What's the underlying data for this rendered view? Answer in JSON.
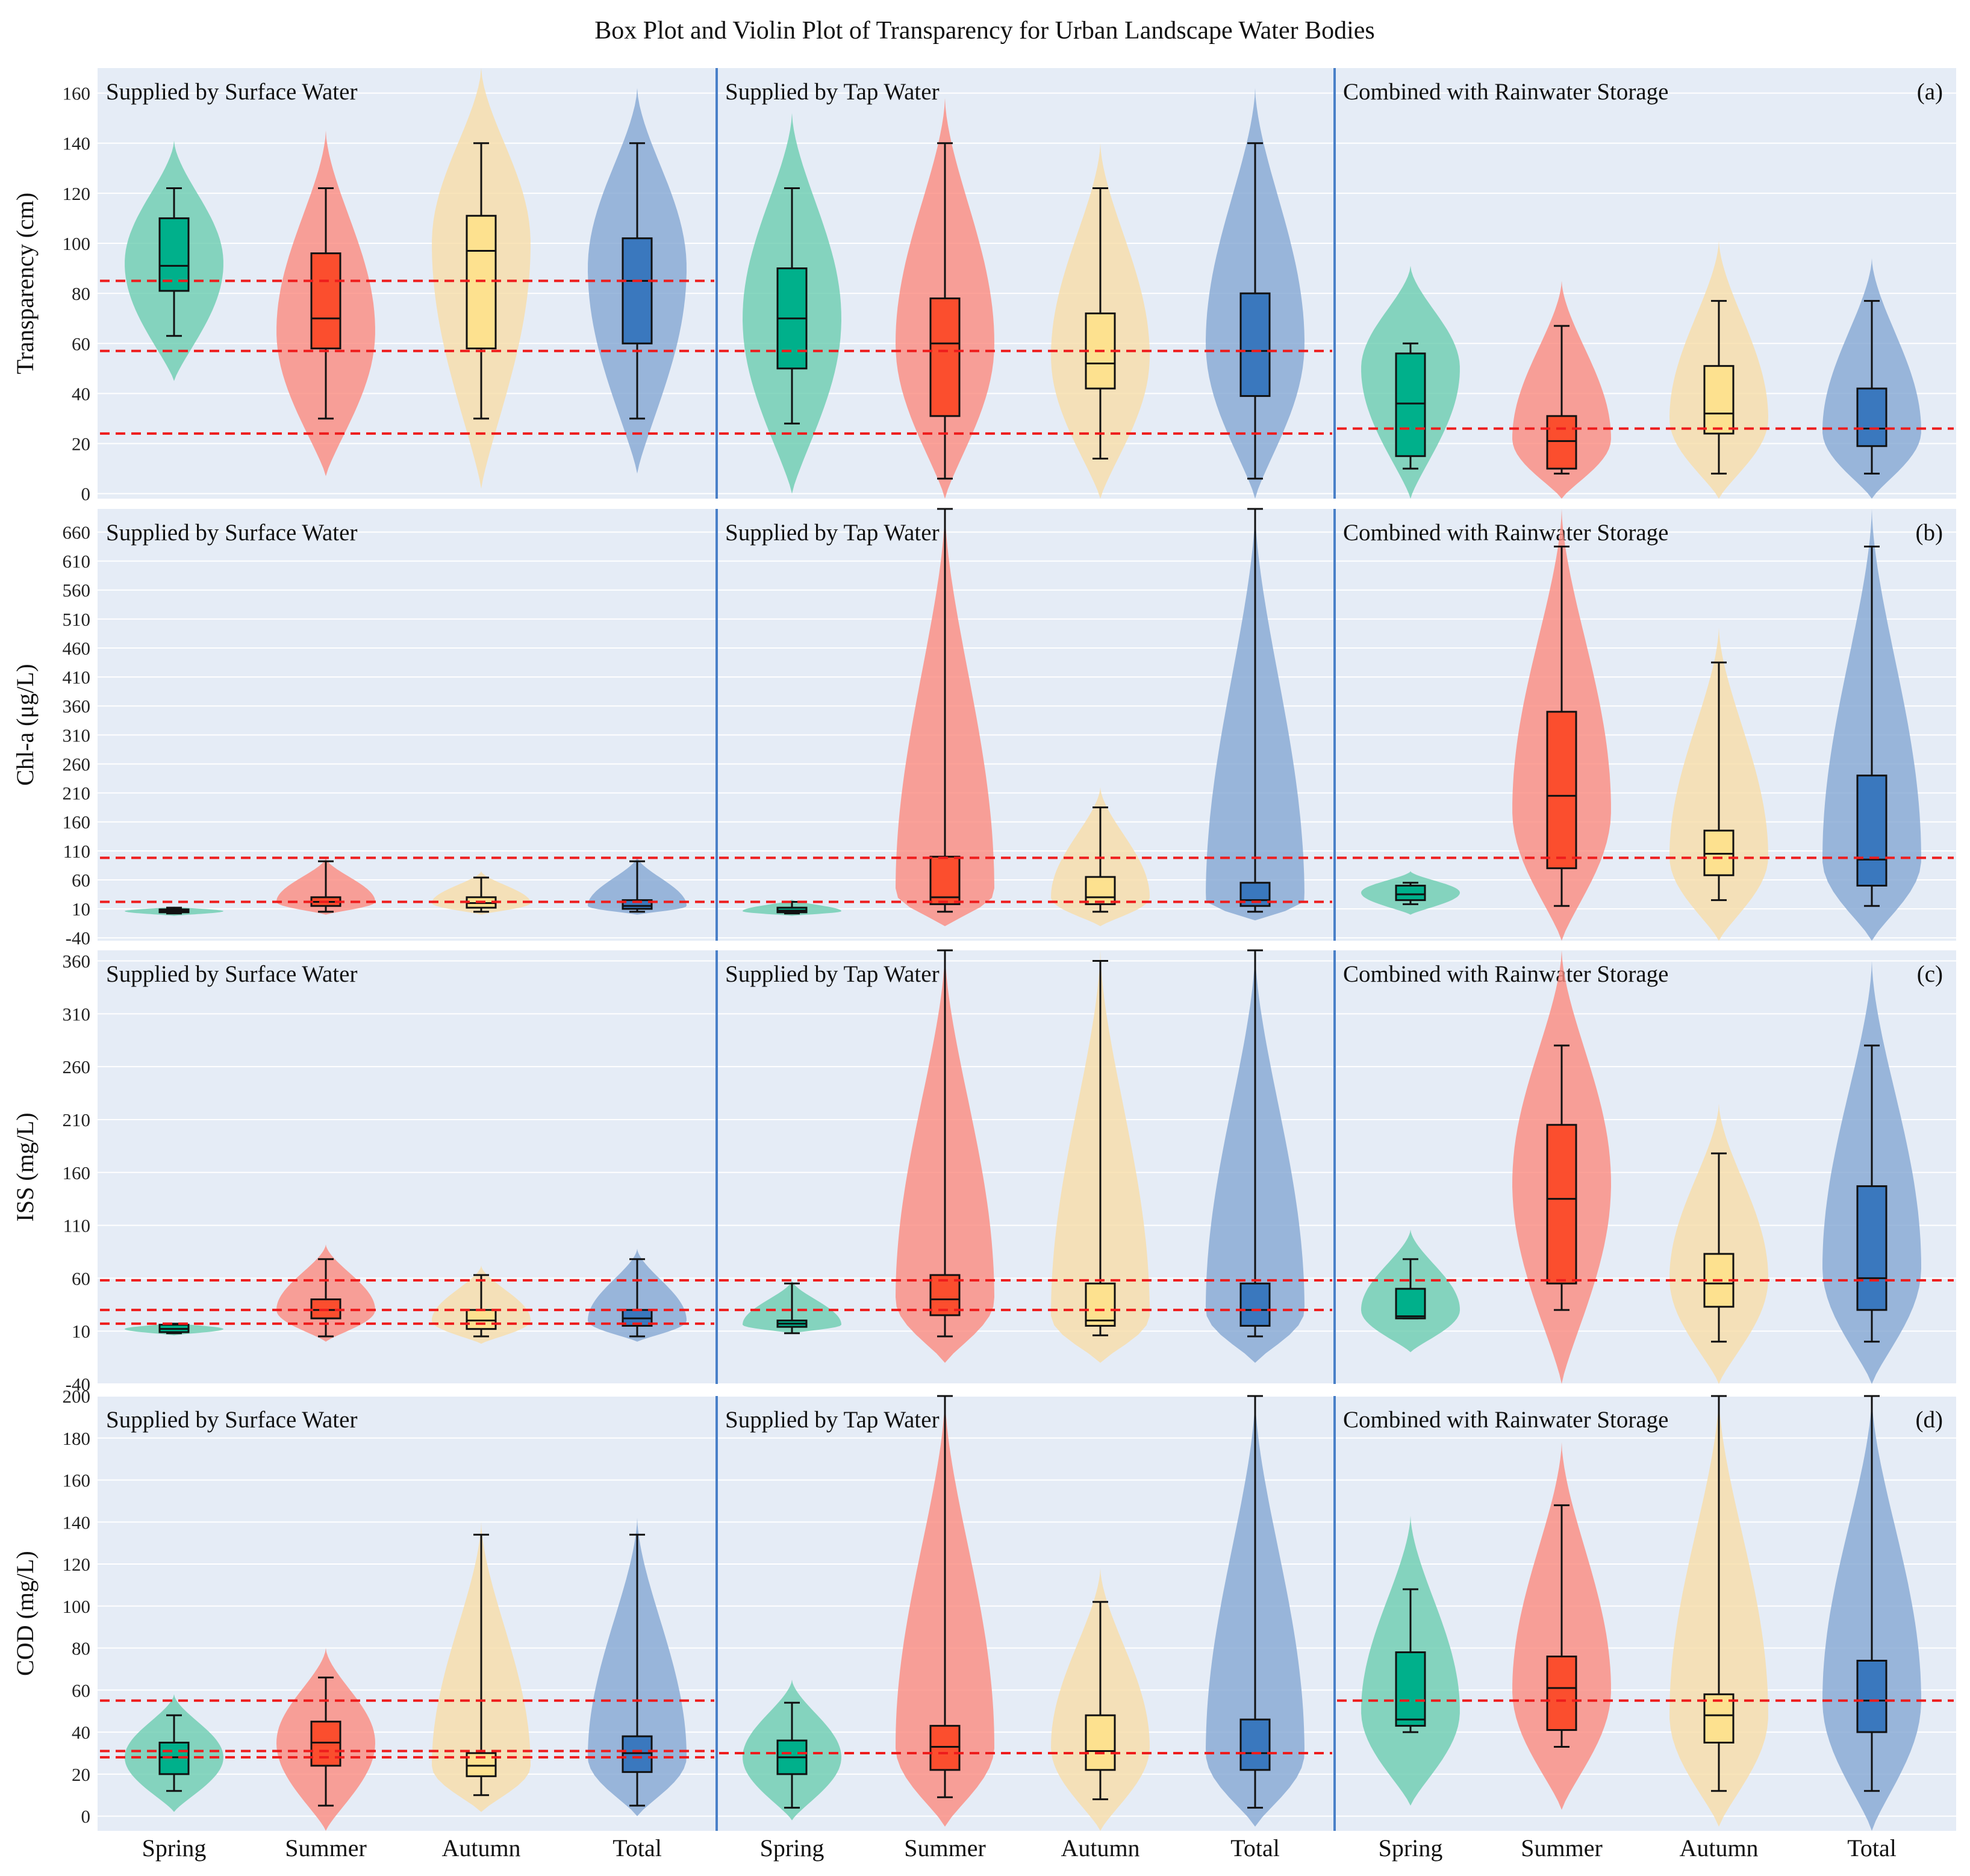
{
  "chart_data": {
    "type": "violin",
    "title": "Box Plot and Violin Plot of Transparency for Urban Landscape Water Bodies",
    "groups": [
      "Supplied by Surface Water",
      "Supplied by Tap Water",
      "Combined with Rainwater Storage"
    ],
    "categories": [
      "Spring",
      "Summer",
      "Autumn",
      "Total"
    ],
    "colors": {
      "Spring": {
        "box": "#00b08b",
        "violin": "#6ccdb0"
      },
      "Summer": {
        "box": "#fb4e2e",
        "violin": "#fb8b80"
      },
      "Autumn": {
        "box": "#fde18f",
        "violin": "#f8dda9"
      },
      "Total": {
        "box": "#3a78be",
        "violin": "#85a8d3"
      }
    },
    "panels": [
      {
        "label": "(a)",
        "ylabel": "Transparency (cm)",
        "ylim": [
          -2,
          170
        ],
        "yticks": [
          0,
          20,
          40,
          60,
          80,
          100,
          120,
          140,
          160
        ],
        "thresholds": [
          [
            85,
            57,
            24
          ],
          [
            57,
            24
          ],
          [
            26
          ]
        ],
        "boxes": [
          [
            {
              "min": 63,
              "q1": 81,
              "med": 91,
              "q3": 110,
              "max": 122,
              "vmin": 45,
              "vmax": 141,
              "peak": 92
            },
            {
              "min": 30,
              "q1": 58,
              "med": 70,
              "q3": 96,
              "max": 122,
              "vmin": 7,
              "vmax": 145,
              "peak": 65
            },
            {
              "min": 30,
              "q1": 58,
              "med": 97,
              "q3": 111,
              "max": 140,
              "vmin": 2,
              "vmax": 170,
              "peak": 100
            },
            {
              "min": 30,
              "q1": 60,
              "med": 85,
              "q3": 102,
              "max": 140,
              "vmin": 8,
              "vmax": 162,
              "peak": 90
            }
          ],
          [
            {
              "min": 28,
              "q1": 50,
              "med": 70,
              "q3": 90,
              "max": 122,
              "vmin": 0,
              "vmax": 152,
              "peak": 70
            },
            {
              "min": 6,
              "q1": 31,
              "med": 60,
              "q3": 78,
              "max": 140,
              "vmin": -2,
              "vmax": 158,
              "peak": 60
            },
            {
              "min": 14,
              "q1": 42,
              "med": 52,
              "q3": 72,
              "max": 122,
              "vmin": -2,
              "vmax": 140,
              "peak": 55
            },
            {
              "min": 6,
              "q1": 39,
              "med": 57,
              "q3": 80,
              "max": 140,
              "vmin": -2,
              "vmax": 162,
              "peak": 60
            }
          ],
          [
            {
              "min": 10,
              "q1": 15,
              "med": 36,
              "q3": 56,
              "max": 60,
              "vmin": -2,
              "vmax": 91,
              "peak": 50
            },
            {
              "min": 8,
              "q1": 10,
              "med": 21,
              "q3": 31,
              "max": 67,
              "vmin": -2,
              "vmax": 85,
              "peak": 22
            },
            {
              "min": 8,
              "q1": 24,
              "med": 32,
              "q3": 51,
              "max": 77,
              "vmin": -2,
              "vmax": 101,
              "peak": 30
            },
            {
              "min": 8,
              "q1": 19,
              "med": 26,
              "q3": 42,
              "max": 77,
              "vmin": -2,
              "vmax": 94,
              "peak": 25
            }
          ]
        ]
      },
      {
        "label": "(b)",
        "ylabel": "Chl-a (μg/L)",
        "ylim": [
          -45,
          700
        ],
        "yticks": [
          -40,
          10,
          60,
          110,
          160,
          210,
          260,
          310,
          360,
          410,
          460,
          510,
          560,
          610,
          660
        ],
        "thresholds": [
          [
            98,
            22
          ],
          [
            98,
            22
          ],
          [
            98
          ]
        ],
        "boxes": [
          [
            {
              "min": 2,
              "q1": 4,
              "med": 6,
              "q3": 9,
              "max": 12,
              "vmin": -2,
              "vmax": 14,
              "peak": 6
            },
            {
              "min": 5,
              "q1": 15,
              "med": 22,
              "q3": 30,
              "max": 92,
              "vmin": 0,
              "vmax": 98,
              "peak": 22
            },
            {
              "min": 5,
              "q1": 12,
              "med": 20,
              "q3": 30,
              "max": 64,
              "vmin": 0,
              "vmax": 75,
              "peak": 20
            },
            {
              "min": 5,
              "q1": 10,
              "med": 15,
              "q3": 25,
              "max": 92,
              "vmin": 0,
              "vmax": 100,
              "peak": 15
            }
          ],
          [
            {
              "min": 2,
              "q1": 4,
              "med": 7,
              "q3": 12,
              "max": 22,
              "vmin": -2,
              "vmax": 26,
              "peak": 6
            },
            {
              "min": 5,
              "q1": 18,
              "med": 30,
              "q3": 100,
              "max": 700,
              "vmin": -20,
              "vmax": 700,
              "peak": 40
            },
            {
              "min": 5,
              "q1": 18,
              "med": 30,
              "q3": 65,
              "max": 185,
              "vmin": -20,
              "vmax": 220,
              "peak": 30
            },
            {
              "min": 5,
              "q1": 15,
              "med": 25,
              "q3": 55,
              "max": 700,
              "vmin": -10,
              "vmax": 700,
              "peak": 25
            }
          ],
          [
            {
              "min": 18,
              "q1": 25,
              "med": 35,
              "q3": 50,
              "max": 55,
              "vmin": 0,
              "vmax": 75,
              "peak": 38
            },
            {
              "min": 15,
              "q1": 80,
              "med": 205,
              "q3": 350,
              "max": 635,
              "vmin": -45,
              "vmax": 700,
              "peak": 180
            },
            {
              "min": 25,
              "q1": 68,
              "med": 105,
              "q3": 145,
              "max": 435,
              "vmin": -45,
              "vmax": 495,
              "peak": 100
            },
            {
              "min": 15,
              "q1": 50,
              "med": 95,
              "q3": 240,
              "max": 635,
              "vmin": -45,
              "vmax": 700,
              "peak": 95
            }
          ]
        ]
      },
      {
        "label": "(c)",
        "ylabel": "ISS (mg/L)",
        "ylim": [
          -40,
          370
        ],
        "yticks": [
          -40,
          10,
          60,
          110,
          160,
          210,
          260,
          310,
          360
        ],
        "thresholds": [
          [
            58,
            30,
            17
          ],
          [
            58,
            30
          ],
          [
            58
          ]
        ],
        "boxes": [
          [
            {
              "min": 8,
              "q1": 9,
              "med": 12,
              "q3": 16,
              "max": 17,
              "vmin": 6,
              "vmax": 18,
              "peak": 12
            },
            {
              "min": 5,
              "q1": 22,
              "med": 30,
              "q3": 40,
              "max": 78,
              "vmin": 0,
              "vmax": 92,
              "peak": 30
            },
            {
              "min": 5,
              "q1": 12,
              "med": 20,
              "q3": 30,
              "max": 63,
              "vmin": -2,
              "vmax": 72,
              "peak": 20
            },
            {
              "min": 5,
              "q1": 15,
              "med": 22,
              "q3": 30,
              "max": 78,
              "vmin": 0,
              "vmax": 88,
              "peak": 20
            }
          ],
          [
            {
              "min": 8,
              "q1": 14,
              "med": 17,
              "q3": 20,
              "max": 55,
              "vmin": 8,
              "vmax": 58,
              "peak": 16
            },
            {
              "min": 5,
              "q1": 25,
              "med": 40,
              "q3": 63,
              "max": 370,
              "vmin": -20,
              "vmax": 370,
              "peak": 40
            },
            {
              "min": 6,
              "q1": 15,
              "med": 20,
              "q3": 55,
              "max": 360,
              "vmin": -20,
              "vmax": 370,
              "peak": 25
            },
            {
              "min": 5,
              "q1": 15,
              "med": 30,
              "q3": 55,
              "max": 370,
              "vmin": -20,
              "vmax": 370,
              "peak": 30
            }
          ],
          [
            {
              "min": 22,
              "q1": 22,
              "med": 24,
              "q3": 50,
              "max": 78,
              "vmin": -10,
              "vmax": 106,
              "peak": 30
            },
            {
              "min": 30,
              "q1": 55,
              "med": 135,
              "q3": 205,
              "max": 280,
              "vmin": -40,
              "vmax": 370,
              "peak": 150
            },
            {
              "min": 0,
              "q1": 33,
              "med": 55,
              "q3": 83,
              "max": 178,
              "vmin": -40,
              "vmax": 225,
              "peak": 60
            },
            {
              "min": 0,
              "q1": 30,
              "med": 60,
              "q3": 147,
              "max": 280,
              "vmin": -40,
              "vmax": 360,
              "peak": 70
            }
          ]
        ]
      },
      {
        "label": "(d)",
        "ylabel": "COD (mg/L)",
        "ylim": [
          -7,
          200
        ],
        "yticks": [
          0,
          20,
          40,
          60,
          80,
          100,
          120,
          140,
          160,
          180,
          200
        ],
        "thresholds": [
          [
            55,
            31,
            28
          ],
          [
            30
          ],
          [
            55
          ]
        ],
        "boxes": [
          [
            {
              "min": 12,
              "q1": 20,
              "med": 28,
              "q3": 35,
              "max": 48,
              "vmin": 2,
              "vmax": 58,
              "peak": 28
            },
            {
              "min": 5,
              "q1": 24,
              "med": 35,
              "q3": 45,
              "max": 66,
              "vmin": -7,
              "vmax": 80,
              "peak": 35
            },
            {
              "min": 10,
              "q1": 19,
              "med": 24,
              "q3": 30,
              "max": 134,
              "vmin": 2,
              "vmax": 140,
              "peak": 24
            },
            {
              "min": 5,
              "q1": 21,
              "med": 30,
              "q3": 38,
              "max": 134,
              "vmin": 0,
              "vmax": 142,
              "peak": 28
            }
          ],
          [
            {
              "min": 4,
              "q1": 20,
              "med": 28,
              "q3": 36,
              "max": 54,
              "vmin": -2,
              "vmax": 65,
              "peak": 28
            },
            {
              "min": 9,
              "q1": 22,
              "med": 33,
              "q3": 43,
              "max": 200,
              "vmin": -5,
              "vmax": 200,
              "peak": 33
            },
            {
              "min": 8,
              "q1": 22,
              "med": 31,
              "q3": 48,
              "max": 102,
              "vmin": -7,
              "vmax": 118,
              "peak": 33
            },
            {
              "min": 4,
              "q1": 22,
              "med": 30,
              "q3": 46,
              "max": 200,
              "vmin": -5,
              "vmax": 200,
              "peak": 30
            }
          ],
          [
            {
              "min": 40,
              "q1": 43,
              "med": 46,
              "q3": 78,
              "max": 108,
              "vmin": 5,
              "vmax": 143,
              "peak": 50
            },
            {
              "min": 33,
              "q1": 41,
              "med": 61,
              "q3": 76,
              "max": 148,
              "vmin": 3,
              "vmax": 178,
              "peak": 60
            },
            {
              "min": 12,
              "q1": 35,
              "med": 48,
              "q3": 58,
              "max": 200,
              "vmin": -5,
              "vmax": 200,
              "peak": 48
            },
            {
              "min": 12,
              "q1": 40,
              "med": 55,
              "q3": 74,
              "max": 200,
              "vmin": -7,
              "vmax": 200,
              "peak": 55
            }
          ]
        ]
      }
    ]
  }
}
